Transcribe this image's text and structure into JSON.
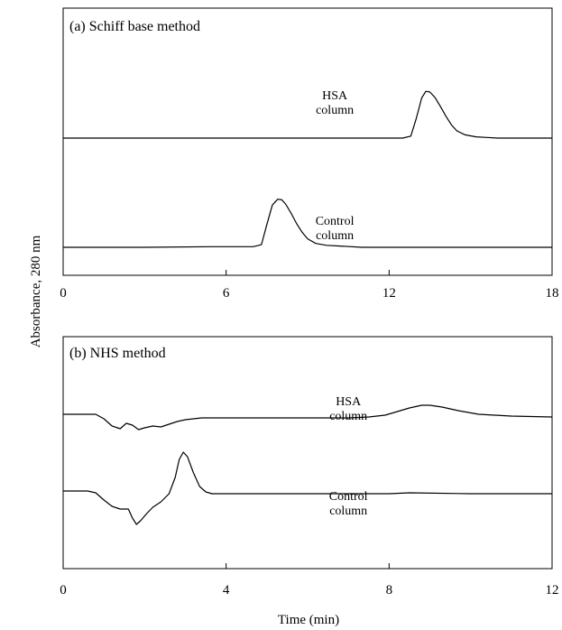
{
  "figure": {
    "ylabel": "Absorbance, 280 nm",
    "xlabel": "Time (min)"
  },
  "chart_data": [
    {
      "type": "line",
      "panel_title": "(a) Schiff base method",
      "xlim": [
        0,
        18
      ],
      "xticks": [
        0,
        6,
        12,
        18
      ],
      "y_ticks_shown": false,
      "grid": false,
      "series": [
        {
          "name": "HSA column",
          "label_lines": [
            "HSA",
            "column"
          ],
          "label_at": [
            10.0,
            0.6
          ],
          "x": [
            0,
            4,
            8,
            11,
            12.5,
            12.8,
            13.0,
            13.2,
            13.35,
            13.5,
            13.7,
            13.9,
            14.1,
            14.3,
            14.5,
            14.8,
            15.2,
            15.6,
            16,
            18
          ],
          "y": [
            0.0,
            0.0,
            0.0,
            0.0,
            0.0,
            0.03,
            0.3,
            0.62,
            0.72,
            0.71,
            0.62,
            0.48,
            0.33,
            0.2,
            0.11,
            0.05,
            0.02,
            0.01,
            0.0,
            0.0
          ]
        },
        {
          "name": "Control column",
          "label_lines": [
            "Control",
            "column"
          ],
          "label_at": [
            10.0,
            0.35
          ],
          "x": [
            0,
            3,
            5.5,
            7.0,
            7.3,
            7.5,
            7.7,
            7.9,
            8.05,
            8.2,
            8.4,
            8.6,
            8.8,
            9.0,
            9.3,
            9.7,
            10.2,
            11,
            18
          ],
          "y": [
            0.0,
            0.0,
            0.01,
            0.01,
            0.04,
            0.35,
            0.65,
            0.74,
            0.73,
            0.66,
            0.52,
            0.36,
            0.23,
            0.13,
            0.06,
            0.03,
            0.02,
            0.0,
            0.0
          ]
        }
      ]
    },
    {
      "type": "line",
      "panel_title": "(b) NHS method",
      "xlim": [
        0,
        12
      ],
      "xticks": [
        0,
        4,
        8,
        12
      ],
      "y_ticks_shown": false,
      "grid": false,
      "series": [
        {
          "name": "HSA column",
          "label_lines": [
            "HSA",
            "column"
          ],
          "label_at": [
            7.0,
            0.1
          ],
          "x": [
            0,
            0.8,
            1.0,
            1.2,
            1.4,
            1.55,
            1.7,
            1.85,
            2.0,
            2.2,
            2.4,
            2.6,
            2.8,
            3.0,
            3.4,
            4.0,
            5,
            6,
            7,
            7.5,
            7.9,
            8.2,
            8.5,
            8.8,
            9.0,
            9.3,
            9.7,
            10.2,
            11,
            12
          ],
          "y": [
            0.0,
            0.0,
            -0.05,
            -0.13,
            -0.16,
            -0.1,
            -0.12,
            -0.17,
            -0.15,
            -0.13,
            -0.14,
            -0.11,
            -0.08,
            -0.06,
            -0.04,
            -0.04,
            -0.04,
            -0.04,
            -0.04,
            -0.03,
            -0.01,
            0.03,
            0.07,
            0.1,
            0.1,
            0.08,
            0.04,
            0.0,
            -0.02,
            -0.03
          ]
        },
        {
          "name": "Control column",
          "label_lines": [
            "Control",
            "column"
          ],
          "label_at": [
            7.0,
            -0.95
          ],
          "x": [
            0,
            0.6,
            0.8,
            1.0,
            1.2,
            1.4,
            1.6,
            1.7,
            1.8,
            1.9,
            2.05,
            2.2,
            2.4,
            2.6,
            2.75,
            2.85,
            2.95,
            3.05,
            3.2,
            3.35,
            3.5,
            3.65,
            4,
            6,
            8,
            8.5,
            10,
            12
          ],
          "y": [
            -0.85,
            -0.85,
            -0.87,
            -0.95,
            -1.02,
            -1.05,
            -1.05,
            -1.15,
            -1.22,
            -1.18,
            -1.1,
            -1.03,
            -0.97,
            -0.88,
            -0.7,
            -0.5,
            -0.42,
            -0.47,
            -0.65,
            -0.8,
            -0.86,
            -0.88,
            -0.88,
            -0.88,
            -0.88,
            -0.87,
            -0.88,
            -0.88
          ]
        }
      ]
    }
  ]
}
